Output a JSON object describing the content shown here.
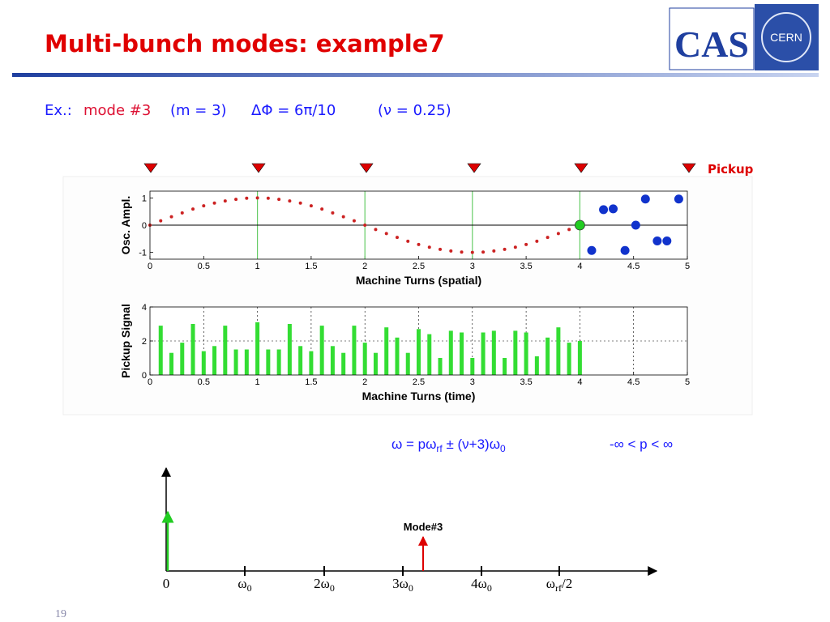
{
  "title": "Multi-bunch modes: example7",
  "logo": {
    "left": "CAS",
    "right": "CERN"
  },
  "subtitle": {
    "prefix": "Ex.:",
    "mode": "mode #3",
    "m": "(m = 3)",
    "phase": "ΔΦ = 6π/10",
    "tune": "(ν = 0.25)"
  },
  "pickup_label": "Pickup",
  "chart_data": [
    {
      "type": "scatter",
      "xlabel": "Machine Turns (spatial)",
      "ylabel": "Osc. Ampl.",
      "xlim": [
        0,
        5
      ],
      "ylim": [
        -1.25,
        1.25
      ],
      "xticks": [
        0,
        0.5,
        1,
        1.5,
        2,
        2.5,
        3,
        3.5,
        4,
        4.5,
        5
      ],
      "yticks": [
        -1,
        0,
        1
      ],
      "vlines": [
        1,
        2,
        3,
        4
      ],
      "vline_color": "#66cc66",
      "zeroline": true,
      "series": [
        {
          "color": "#cc2222",
          "marker_size": 2,
          "x": [
            0,
            0.1,
            0.2,
            0.3,
            0.4,
            0.5,
            0.6,
            0.7,
            0.8,
            0.9,
            1,
            1.1,
            1.2,
            1.3,
            1.4,
            1.5,
            1.6,
            1.7,
            1.8,
            1.9,
            2,
            2.1,
            2.2,
            2.3,
            2.4,
            2.5,
            2.6,
            2.7,
            2.8,
            2.9,
            3,
            3.1,
            3.2,
            3.3,
            3.4,
            3.5,
            3.6,
            3.7,
            3.8,
            3.9,
            4
          ],
          "values": [
            0,
            0.16,
            0.31,
            0.45,
            0.59,
            0.71,
            0.81,
            0.89,
            0.95,
            0.99,
            1,
            0.99,
            0.95,
            0.89,
            0.81,
            0.71,
            0.59,
            0.45,
            0.31,
            0.16,
            0,
            -0.16,
            -0.31,
            -0.45,
            -0.59,
            -0.71,
            -0.81,
            -0.89,
            -0.95,
            -0.99,
            -1,
            -0.99,
            -0.95,
            -0.89,
            -0.81,
            -0.71,
            -0.59,
            -0.45,
            -0.31,
            -0.16,
            0
          ]
        },
        {
          "color": "#1133cc",
          "marker_size": 5.5,
          "x": [
            4.11,
            4.22,
            4.31,
            4.42,
            4.52,
            4.61,
            4.72,
            4.81,
            4.92
          ],
          "values": [
            -0.93,
            0.57,
            0.6,
            -0.93,
            0,
            0.96,
            -0.58,
            -0.58,
            0.96
          ]
        },
        {
          "color": "#22cc22",
          "marker_size": 6,
          "x": [
            4
          ],
          "values": [
            0
          ]
        }
      ]
    },
    {
      "type": "bar",
      "xlabel": "Machine Turns (time)",
      "ylabel": "Pickup Signal",
      "xlim": [
        0,
        5
      ],
      "ylim": [
        0,
        4
      ],
      "xticks": [
        0,
        0.5,
        1,
        1.5,
        2,
        2.5,
        3,
        3.5,
        4,
        4.5,
        5
      ],
      "yticks": [
        0,
        2,
        4
      ],
      "grid": true,
      "color": "#33dd33",
      "x": [
        0.1,
        0.2,
        0.3,
        0.4,
        0.5,
        0.6,
        0.7,
        0.8,
        0.9,
        1,
        1.1,
        1.2,
        1.3,
        1.4,
        1.5,
        1.6,
        1.7,
        1.8,
        1.9,
        2,
        2.1,
        2.2,
        2.3,
        2.4,
        2.5,
        2.6,
        2.7,
        2.8,
        2.9,
        3,
        3.1,
        3.2,
        3.3,
        3.4,
        3.5,
        3.6,
        3.7,
        3.8,
        3.9,
        4
      ],
      "values": [
        2.9,
        1.3,
        1.9,
        3.0,
        1.4,
        1.7,
        2.9,
        1.5,
        1.5,
        3.1,
        1.5,
        1.5,
        3.0,
        1.7,
        1.4,
        2.9,
        1.7,
        1.3,
        2.9,
        1.9,
        1.3,
        2.8,
        2.2,
        1.3,
        2.7,
        2.4,
        1.0,
        2.6,
        2.5,
        1.0,
        2.5,
        2.6,
        1.0,
        2.6,
        2.5,
        1.1,
        2.2,
        2.8,
        1.9,
        2.0
      ]
    }
  ],
  "formula": {
    "a": "ω = pω",
    "a_sub": "rf",
    "b": " ± (ν+3)ω",
    "b_sub": "0",
    "range": "-∞ <  p  < ∞"
  },
  "spectrum": {
    "labels": [
      {
        "base": "0"
      },
      {
        "base": "ω",
        "sub": "0"
      },
      {
        "base": "2ω",
        "sub": "0"
      },
      {
        "base": "3ω",
        "sub": "0"
      },
      {
        "base": "4ω",
        "sub": "0"
      },
      {
        "base": "ω",
        "sub": "rf",
        "tail": "/2"
      }
    ],
    "mode_label": "Mode#3"
  },
  "page_number": "19"
}
